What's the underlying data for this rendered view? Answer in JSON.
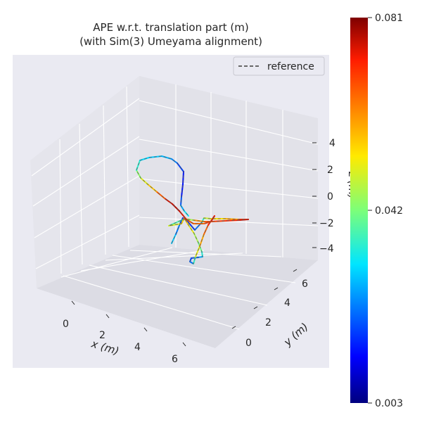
{
  "chart_data": {
    "type": "line",
    "projection": "3d",
    "title": "APE w.r.t. translation part (m)",
    "subtitle": "(with Sim(3) Umeyama alignment)",
    "xlabel": "x (m)",
    "ylabel": "y (m)",
    "zlabel": "z (m)",
    "x_ticks": [
      "0",
      "2",
      "4",
      "6"
    ],
    "y_ticks": [
      "0",
      "2",
      "4",
      "6"
    ],
    "z_ticks": [
      "4",
      "2",
      "0",
      "−2",
      "−4"
    ],
    "legend": {
      "entries": [
        "reference"
      ],
      "placement": "top-right",
      "style": "dashed"
    },
    "colorbar": {
      "colormap": "jet",
      "min": 0.003,
      "max": 0.081,
      "ticks": [
        "0.081",
        "0.042",
        "0.003"
      ]
    },
    "background": "#eaeaf2",
    "grid": true
  }
}
